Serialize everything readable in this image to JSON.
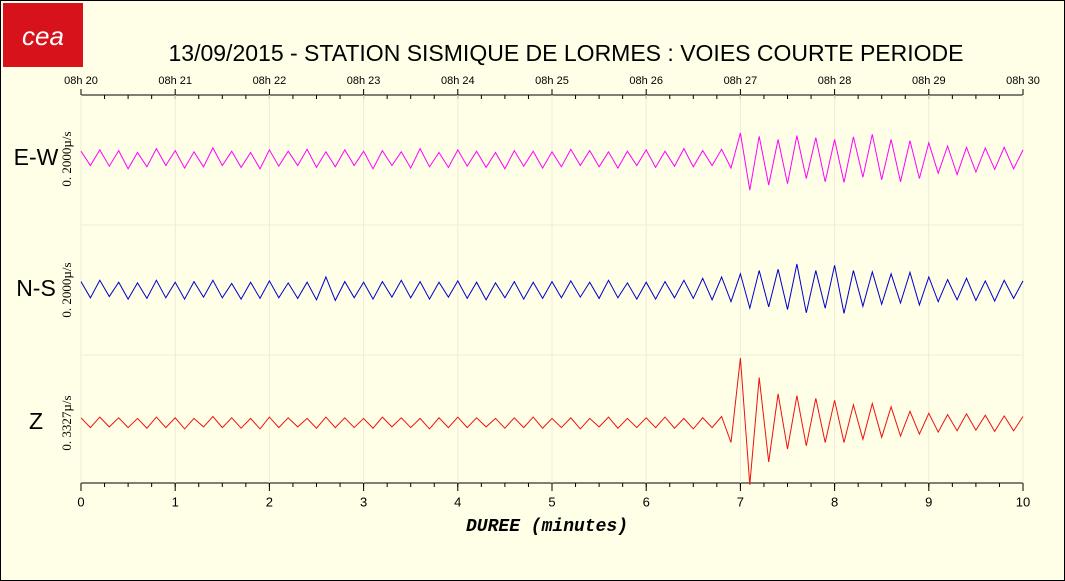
{
  "chart_data": {
    "type": "line",
    "title": "13/09/2015  -  STATION SISMIQUE DE LORMES : VOIES COURTE PERIODE",
    "logo": "cea",
    "x_label": "DUREE (minutes)",
    "xlim": [
      0,
      10
    ],
    "xticks": [
      0,
      1,
      2,
      3,
      4,
      5,
      6,
      7,
      8,
      9,
      10
    ],
    "top_xticks": [
      {
        "value": 0,
        "label": "08h 20"
      },
      {
        "value": 1,
        "label": "08h 21"
      },
      {
        "value": 2,
        "label": "08h 22"
      },
      {
        "value": 3,
        "label": "08h 23"
      },
      {
        "value": 4,
        "label": "08h 24"
      },
      {
        "value": 5,
        "label": "08h 25"
      },
      {
        "value": 6,
        "label": "08h 26"
      },
      {
        "value": 7,
        "label": "08h 27"
      },
      {
        "value": 8,
        "label": "08h 28"
      },
      {
        "value": 9,
        "label": "08h 29"
      },
      {
        "value": 10,
        "label": "08h 30"
      }
    ],
    "ylim": [
      -1,
      1
    ],
    "grid": true,
    "x": [
      0,
      0.1,
      0.2,
      0.3,
      0.4,
      0.5,
      0.6,
      0.7,
      0.8,
      0.9,
      1,
      1.1,
      1.2,
      1.3,
      1.4,
      1.5,
      1.6,
      1.7,
      1.8,
      1.9,
      2,
      2.1,
      2.2,
      2.3,
      2.4,
      2.5,
      2.6,
      2.7,
      2.8,
      2.9,
      3,
      3.1,
      3.2,
      3.3,
      3.4,
      3.5,
      3.6,
      3.7,
      3.8,
      3.9,
      4,
      4.1,
      4.2,
      4.3,
      4.4,
      4.5,
      4.6,
      4.7,
      4.8,
      4.9,
      5,
      5.1,
      5.2,
      5.3,
      5.4,
      5.5,
      5.6,
      5.7,
      5.8,
      5.9,
      6,
      6.1,
      6.2,
      6.3,
      6.4,
      6.5,
      6.6,
      6.7,
      6.8,
      6.9,
      7,
      7.1,
      7.2,
      7.3,
      7.4,
      7.5,
      7.6,
      7.7,
      7.8,
      7.9,
      8,
      8.1,
      8.2,
      8.3,
      8.4,
      8.5,
      8.6,
      8.7,
      8.8,
      8.9,
      9,
      9.1,
      9.2,
      9.3,
      9.4,
      9.5,
      9.6,
      9.7,
      9.8,
      9.9,
      10
    ],
    "series": [
      {
        "name": "E-W",
        "scale_label": "0. 2000µ/s",
        "color": "#ff00ff",
        "values": [
          0.12,
          -0.1,
          0.14,
          -0.11,
          0.13,
          -0.15,
          0.1,
          -0.12,
          0.16,
          -0.1,
          0.13,
          -0.14,
          0.11,
          -0.12,
          0.17,
          -0.1,
          0.12,
          -0.13,
          0.1,
          -0.15,
          0.14,
          -0.11,
          0.12,
          -0.1,
          0.15,
          -0.13,
          0.11,
          -0.12,
          0.14,
          -0.1,
          0.12,
          -0.15,
          0.13,
          -0.1,
          0.11,
          -0.14,
          0.16,
          -0.12,
          0.1,
          -0.13,
          0.14,
          -0.11,
          0.12,
          -0.13,
          0.1,
          -0.15,
          0.13,
          -0.11,
          0.12,
          -0.14,
          0.11,
          -0.12,
          0.15,
          -0.1,
          0.13,
          -0.12,
          0.11,
          -0.14,
          0.12,
          -0.1,
          0.14,
          -0.13,
          0.12,
          -0.11,
          0.16,
          -0.12,
          0.13,
          -0.1,
          0.15,
          -0.14,
          0.4,
          -0.48,
          0.35,
          -0.4,
          0.3,
          -0.38,
          0.36,
          -0.3,
          0.33,
          -0.35,
          0.3,
          -0.36,
          0.34,
          -0.28,
          0.38,
          -0.32,
          0.3,
          -0.35,
          0.28,
          -0.3,
          0.25,
          -0.22,
          0.2,
          -0.24,
          0.18,
          -0.2,
          0.17,
          -0.16,
          0.18,
          -0.15,
          0.14
        ]
      },
      {
        "name": "N-S",
        "scale_label": "0. 2000µ/s",
        "color": "#0000cc",
        "values": [
          0.13,
          -0.12,
          0.15,
          -0.1,
          0.12,
          -0.14,
          0.11,
          -0.13,
          0.15,
          -0.12,
          0.12,
          -0.14,
          0.13,
          -0.11,
          0.15,
          -0.12,
          0.1,
          -0.14,
          0.12,
          -0.13,
          0.14,
          -0.12,
          0.11,
          -0.13,
          0.12,
          -0.15,
          0.2,
          -0.16,
          0.13,
          -0.12,
          0.12,
          -0.14,
          0.13,
          -0.11,
          0.15,
          -0.12,
          0.13,
          -0.14,
          0.12,
          -0.11,
          0.14,
          -0.13,
          0.12,
          -0.15,
          0.11,
          -0.12,
          0.13,
          -0.14,
          0.12,
          -0.13,
          0.13,
          -0.12,
          0.14,
          -0.11,
          0.12,
          -0.13,
          0.15,
          -0.12,
          0.11,
          -0.14,
          0.12,
          -0.14,
          0.13,
          -0.12,
          0.15,
          -0.13,
          0.18,
          -0.15,
          0.2,
          -0.18,
          0.25,
          -0.28,
          0.3,
          -0.26,
          0.32,
          -0.3,
          0.4,
          -0.35,
          0.3,
          -0.28,
          0.38,
          -0.36,
          0.3,
          -0.25,
          0.28,
          -0.22,
          0.25,
          -0.2,
          0.27,
          -0.23,
          0.2,
          -0.18,
          0.16,
          -0.15,
          0.18,
          -0.16,
          0.14,
          -0.17,
          0.15,
          -0.13,
          0.14
        ]
      },
      {
        "name": "Z",
        "scale_label": "0. 3327µ/s",
        "color": "#ee1111",
        "values": [
          0.08,
          -0.07,
          0.09,
          -0.06,
          0.08,
          -0.07,
          0.07,
          -0.08,
          0.09,
          -0.07,
          0.08,
          -0.09,
          0.07,
          -0.06,
          0.1,
          -0.07,
          0.08,
          -0.08,
          0.07,
          -0.09,
          0.09,
          -0.07,
          0.08,
          -0.06,
          0.07,
          -0.08,
          0.09,
          -0.07,
          0.08,
          -0.07,
          0.07,
          -0.08,
          0.09,
          -0.06,
          0.08,
          -0.07,
          0.07,
          -0.09,
          0.08,
          -0.07,
          0.09,
          -0.07,
          0.08,
          -0.06,
          0.07,
          -0.08,
          0.08,
          -0.07,
          0.09,
          -0.08,
          0.07,
          -0.07,
          0.08,
          -0.09,
          0.07,
          -0.06,
          0.09,
          -0.08,
          0.07,
          -0.07,
          0.08,
          -0.07,
          0.09,
          -0.08,
          0.07,
          -0.09,
          0.08,
          -0.07,
          0.1,
          -0.3,
          1.0,
          -0.95,
          0.7,
          -0.6,
          0.45,
          -0.4,
          0.42,
          -0.35,
          0.38,
          -0.3,
          0.35,
          -0.3,
          0.28,
          -0.25,
          0.3,
          -0.22,
          0.25,
          -0.2,
          0.18,
          -0.17,
          0.15,
          -0.14,
          0.13,
          -0.12,
          0.14,
          -0.11,
          0.12,
          -0.13,
          0.11,
          -0.12,
          0.1
        ]
      }
    ]
  }
}
